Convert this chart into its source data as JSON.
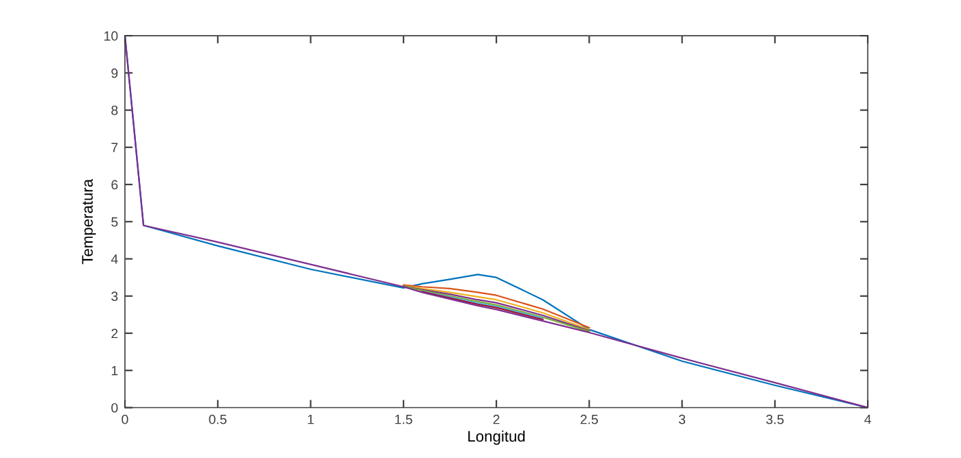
{
  "chart_data": {
    "type": "line",
    "xlabel": "Longitud",
    "ylabel": "Temperatura",
    "x": [
      0,
      0.1,
      0.5,
      1,
      1.5,
      1.6,
      1.75,
      1.9,
      2,
      2.25,
      2.5,
      3,
      3.5,
      4
    ],
    "xlim": [
      0,
      4
    ],
    "ylim": [
      0,
      10
    ],
    "xticks": [
      0,
      0.5,
      1,
      1.5,
      2,
      2.5,
      3,
      3.5,
      4
    ],
    "yticks": [
      0,
      1,
      2,
      3,
      4,
      5,
      6,
      7,
      8,
      9,
      10
    ],
    "grid": false,
    "legend": false,
    "marker": "none",
    "line_style": "solid",
    "series": [
      {
        "color": "#0072bd",
        "values": [
          10,
          4.9,
          4.35,
          3.72,
          3.22,
          3.33,
          3.45,
          3.58,
          3.5,
          2.9,
          2.1,
          1.25,
          0.6,
          0
        ]
      },
      {
        "color": "#d95319",
        "values": [
          null,
          null,
          null,
          null,
          3.3,
          3.25,
          3.2,
          3.1,
          3.02,
          2.65,
          2.15,
          null,
          null,
          null
        ]
      },
      {
        "color": "#edb120",
        "values": [
          null,
          null,
          null,
          null,
          3.28,
          3.2,
          3.1,
          2.98,
          2.9,
          2.55,
          2.1,
          null,
          null,
          null
        ]
      },
      {
        "color": "#7e2f8e",
        "values": [
          null,
          null,
          null,
          null,
          3.27,
          3.17,
          3.05,
          2.9,
          2.82,
          2.48,
          2.07,
          null,
          null,
          null
        ]
      },
      {
        "color": "#77ac30",
        "values": [
          null,
          null,
          null,
          null,
          3.26,
          3.15,
          3.0,
          2.85,
          2.76,
          2.43,
          2.05,
          null,
          null,
          null
        ]
      },
      {
        "color": "#4dbeee",
        "values": [
          null,
          null,
          null,
          null,
          null,
          3.13,
          2.97,
          2.81,
          2.72,
          2.4,
          null,
          null,
          null,
          null
        ]
      },
      {
        "color": "#a2142f",
        "values": [
          null,
          null,
          null,
          null,
          null,
          3.12,
          2.95,
          2.78,
          2.69,
          2.37,
          null,
          null,
          null,
          null
        ]
      },
      {
        "color": "#7e2f8e",
        "values": [
          10,
          4.9,
          4.45,
          3.85,
          3.25,
          3.1,
          2.92,
          2.74,
          2.64,
          2.33,
          2.02,
          1.33,
          0.67,
          0
        ]
      }
    ]
  }
}
